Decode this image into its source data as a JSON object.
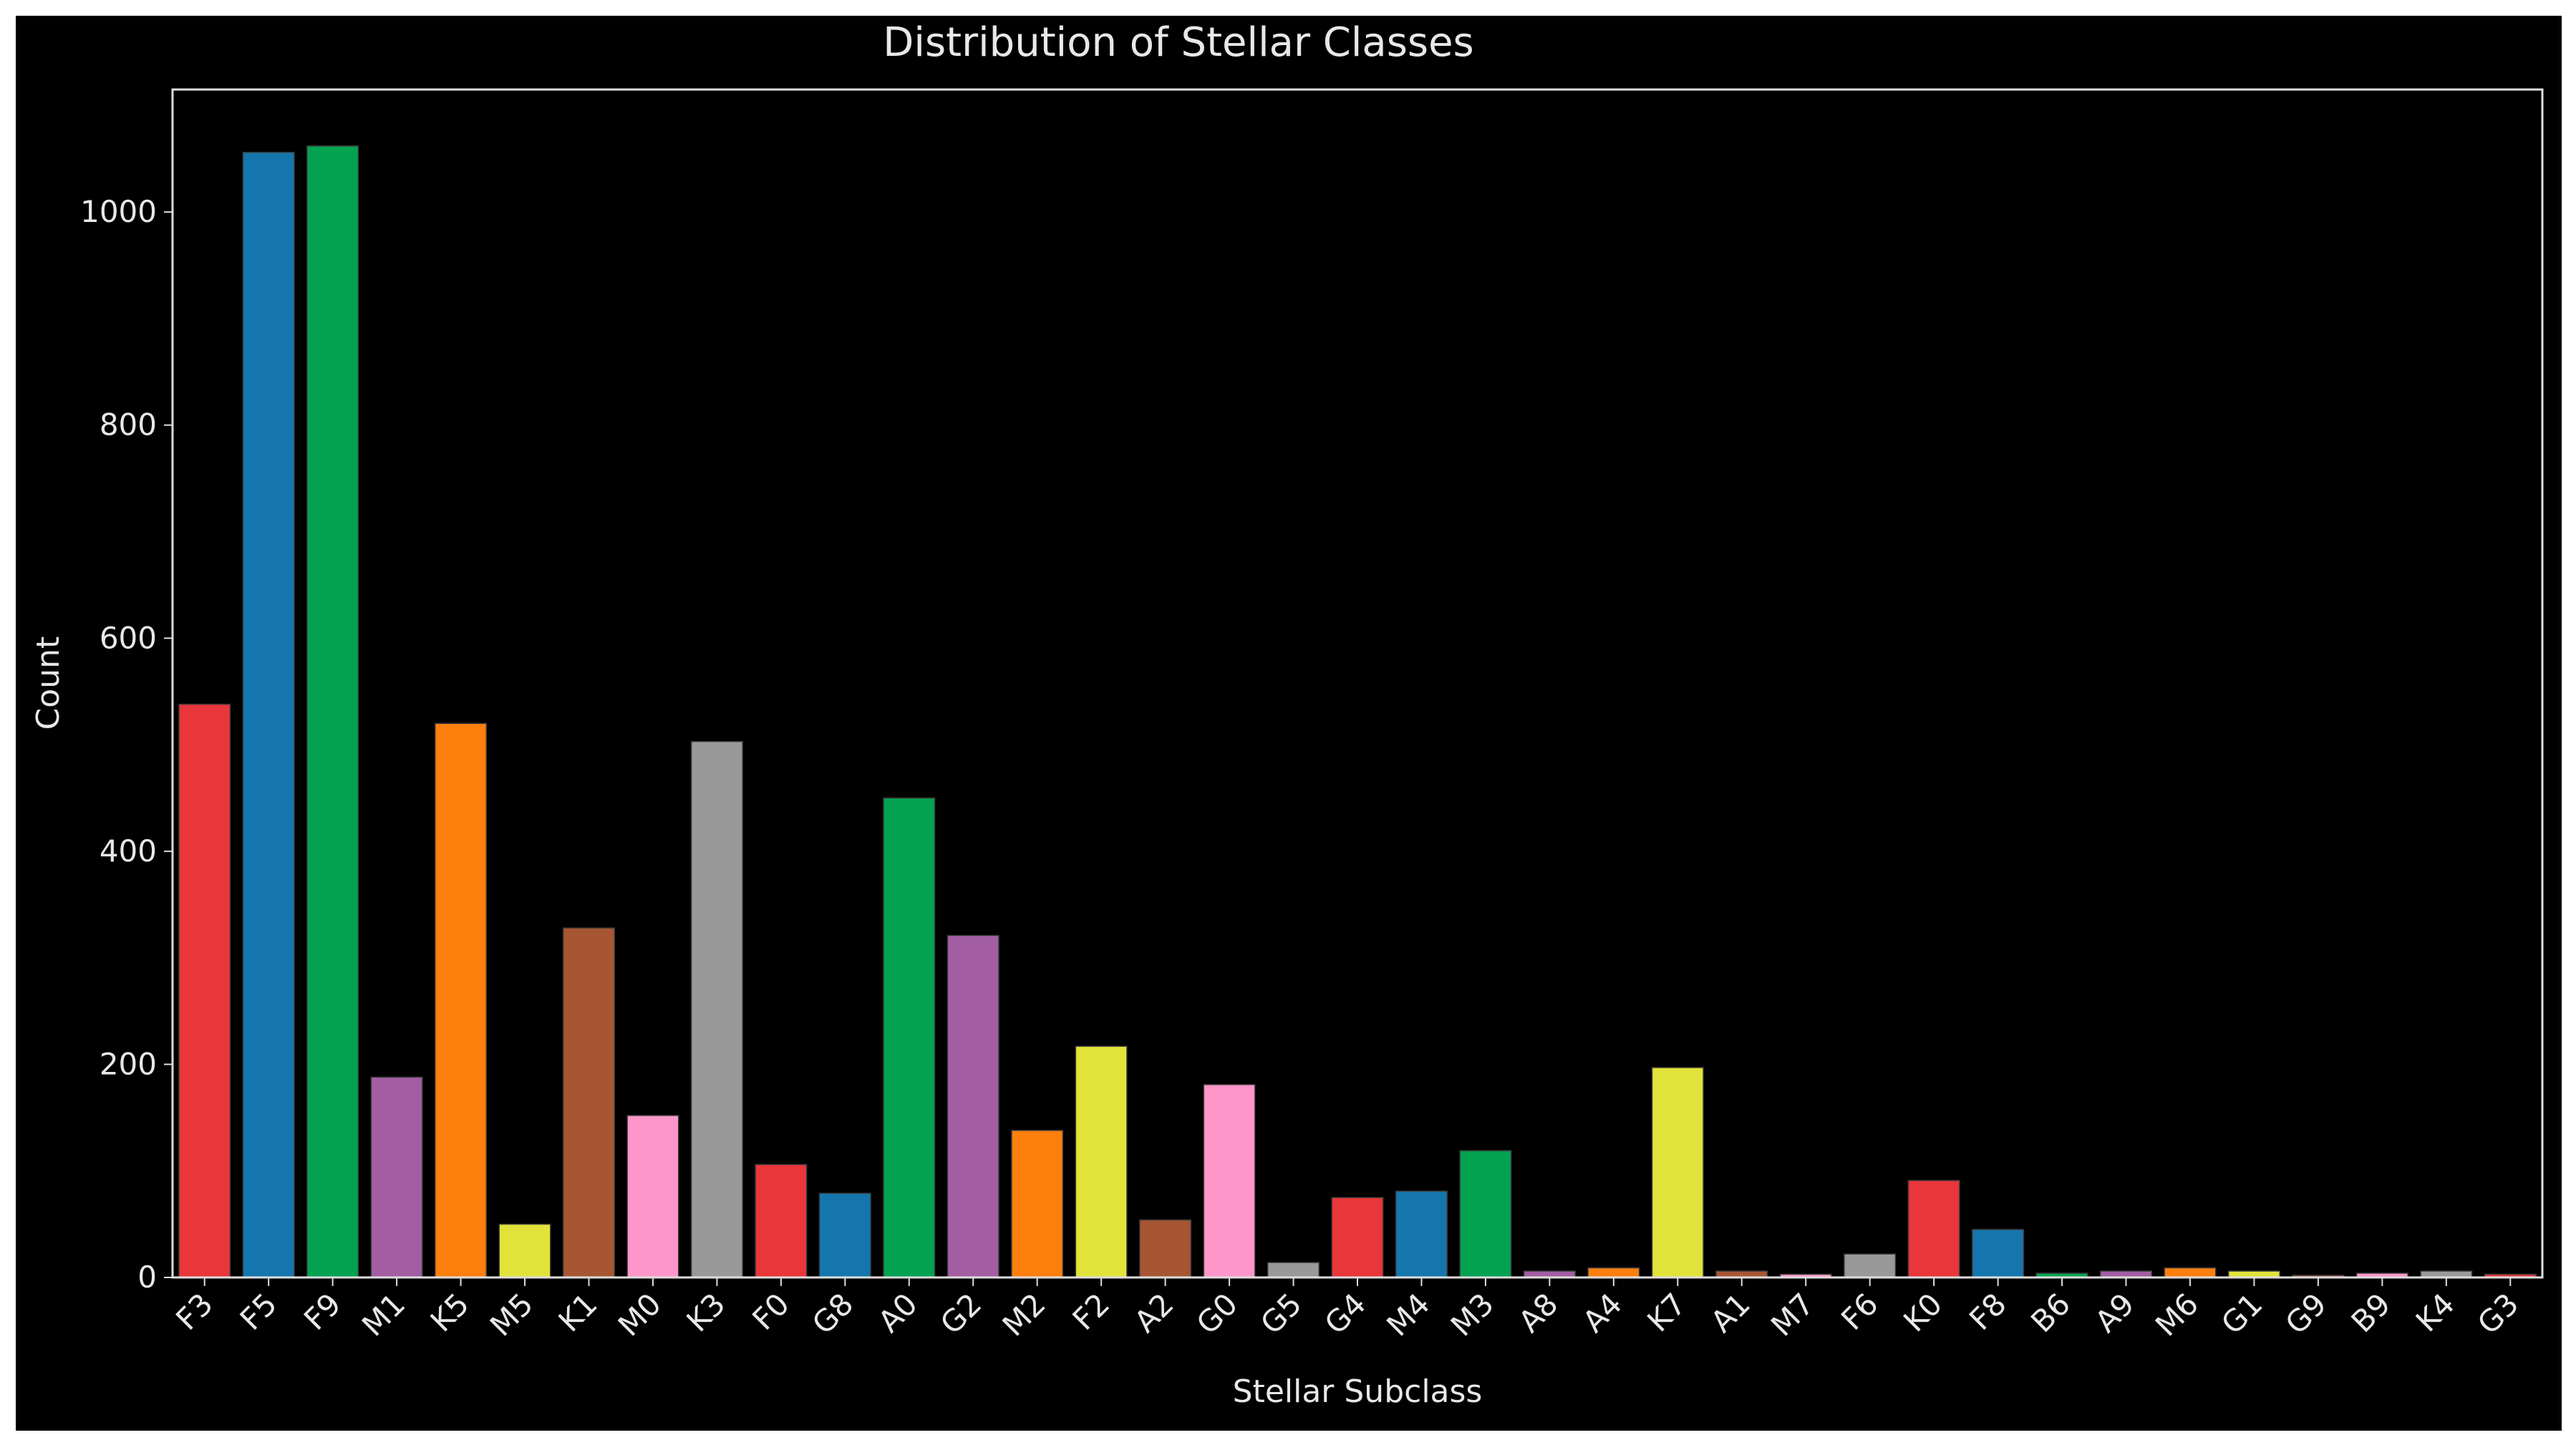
{
  "chart_data": {
    "type": "bar",
    "title": "Distribution of Stellar Classes",
    "xlabel": "Stellar Subclass",
    "ylabel": "Count",
    "ylim": [
      0,
      1115
    ],
    "yticks": [
      0,
      200,
      400,
      600,
      800,
      1000
    ],
    "grid": false,
    "legend": "none",
    "categories": [
      "F3",
      "F5",
      "F9",
      "M1",
      "K5",
      "M5",
      "K1",
      "M0",
      "K3",
      "F0",
      "G8",
      "A0",
      "G2",
      "M2",
      "F2",
      "A2",
      "G0",
      "G5",
      "G4",
      "M4",
      "M3",
      "A8",
      "A4",
      "K7",
      "A1",
      "M7",
      "F6",
      "K0",
      "F8",
      "B6",
      "A9",
      "M6",
      "G1",
      "G9",
      "B9",
      "K4",
      "G3"
    ],
    "values": [
      538,
      1056,
      1062,
      188,
      520,
      50,
      328,
      152,
      503,
      106,
      79,
      450,
      321,
      138,
      217,
      54,
      181,
      14,
      75,
      81,
      119,
      6,
      9,
      197,
      6,
      3,
      22,
      91,
      45,
      4,
      6,
      9,
      6,
      2,
      4,
      6,
      3
    ],
    "colors": [
      "#e8363a",
      "#1576ad",
      "#03a250",
      "#a25da3",
      "#fd7f0e",
      "#e2e33a",
      "#a75634",
      "#fe96c9",
      "#999999"
    ]
  }
}
